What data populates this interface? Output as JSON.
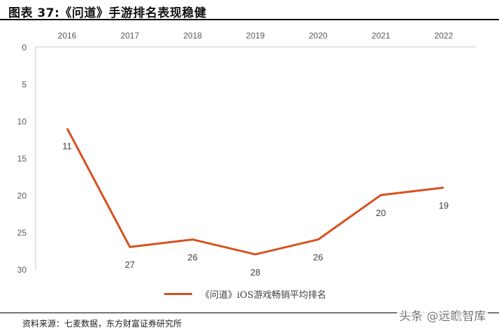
{
  "header": {
    "title": "图表 37:《问道》手游排名表现稳健"
  },
  "chart_data": {
    "type": "line",
    "title": "《问道》手游排名表现稳健",
    "categories": [
      "2016",
      "2017",
      "2018",
      "2019",
      "2020",
      "2021",
      "2022"
    ],
    "series": [
      {
        "name": "《问道》iOS游戏畅销平均排名",
        "color": "#d8501e",
        "values": [
          11,
          27,
          26,
          28,
          26,
          20,
          19
        ]
      }
    ],
    "xlabel": "",
    "ylabel": "",
    "ylim": [
      0,
      30
    ],
    "y_inverted": true,
    "y_ticks": [
      "0",
      "5",
      "10",
      "15",
      "20",
      "25",
      "30"
    ],
    "x_axis_position": "top",
    "grid": false,
    "legend_position": "bottom",
    "data_labels": [
      "11",
      "27",
      "26",
      "28",
      "26",
      "20",
      "19"
    ]
  },
  "legend": {
    "label": "《问道》iOS游戏畅销平均排名"
  },
  "footer": {
    "source": "资料来源：七麦数据，东方财富证券研究所",
    "watermark": "头条 @远瞻智库"
  }
}
